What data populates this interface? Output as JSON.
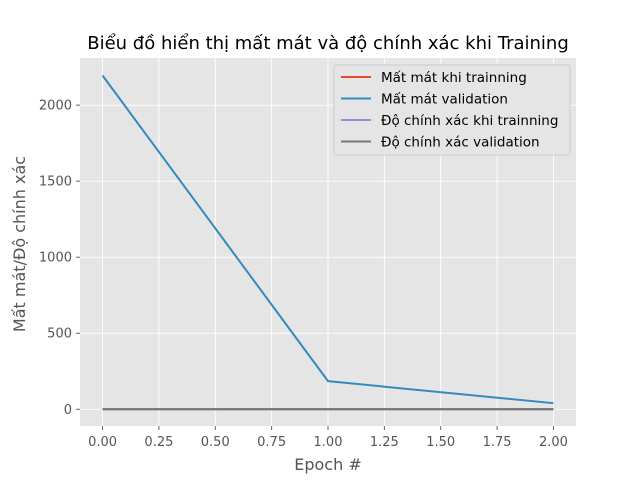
{
  "chart_data": {
    "type": "line",
    "title": "Biểu đồ hiển thị mất mát và độ chính xác khi Training",
    "xlabel": "Epoch #",
    "ylabel": "Mất mát/Độ chính xác",
    "xlim": [
      -0.1,
      2.1
    ],
    "ylim": [
      -110,
      2310
    ],
    "xticks": [
      0,
      0.25,
      0.5,
      0.75,
      1,
      1.25,
      1.5,
      1.75,
      2
    ],
    "xtick_labels": [
      "0.00",
      "0.25",
      "0.50",
      "0.75",
      "1.00",
      "1.25",
      "1.50",
      "1.75",
      "2.00"
    ],
    "yticks": [
      0,
      500,
      1000,
      1500,
      2000
    ],
    "ytick_labels": [
      "0",
      "500",
      "1000",
      "1500",
      "2000"
    ],
    "grid": true,
    "legend_position": "top-right",
    "x": [
      0,
      1,
      2
    ],
    "series": [
      {
        "name": "Mất mát khi trainning",
        "values": [
          0.7,
          0.4,
          0.3
        ],
        "color": "#E24A33"
      },
      {
        "name": "Mất mát validation",
        "values": [
          2195,
          185,
          40
        ],
        "color": "#348ABD"
      },
      {
        "name": "Độ chính xác khi trainning",
        "values": [
          0.5,
          0.8,
          0.9
        ],
        "color": "#988ED5"
      },
      {
        "name": "Độ chính xác validation",
        "values": [
          0.5,
          0.6,
          0.7
        ],
        "color": "#777777"
      }
    ]
  },
  "style": {
    "plot_background": "#E5E5E5",
    "grid_color": "#FFFFFF"
  }
}
